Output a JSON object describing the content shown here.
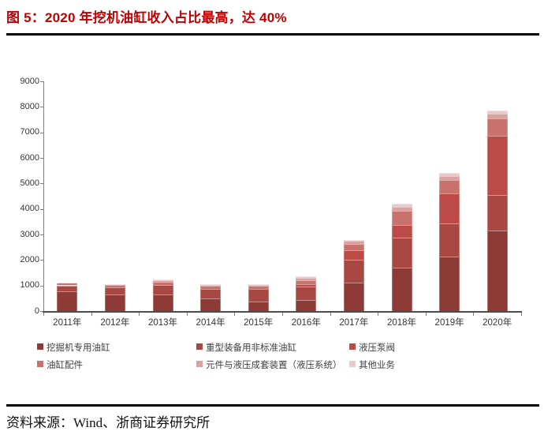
{
  "page": {
    "title": "图 5：2020 年挖机油缸收入占比最高，达 40%",
    "source": "资料来源：Wind、浙商证券研究所",
    "accent_color": "#C00000"
  },
  "chart_data": {
    "type": "bar",
    "stacked": true,
    "title": "图 5：2020 年挖机油缸收入占比最高，达 40%",
    "grid": false,
    "legend_position": "bottom",
    "categories": [
      "2011年",
      "2012年",
      "2013年",
      "2014年",
      "2015年",
      "2016年",
      "2017年",
      "2018年",
      "2019年",
      "2020年"
    ],
    "series": [
      {
        "name": "挖掘机专用油缸",
        "color": "#8E3B37",
        "values": [
          775,
          660,
          650,
          495,
          370,
          420,
          1113,
          1700,
          2134,
          3140
        ]
      },
      {
        "name": "重型装备用非标准油缸",
        "color": "#A84843",
        "values": [
          230,
          260,
          380,
          370,
          500,
          540,
          900,
          1175,
          1300,
          1420
        ]
      },
      {
        "name": "液压泵阀",
        "color": "#BC4B47",
        "values": [
          0,
          0,
          0,
          0,
          0,
          90,
          380,
          500,
          1175,
          2300
        ]
      },
      {
        "name": "油缸配件",
        "color": "#C9716C",
        "values": [
          100,
          100,
          120,
          120,
          120,
          150,
          250,
          550,
          525,
          700
        ]
      },
      {
        "name": "元件与液压成套装置（液压系统）",
        "color": "#D9A1A0",
        "values": [
          0,
          0,
          60,
          50,
          40,
          90,
          110,
          160,
          160,
          180
        ]
      },
      {
        "name": "其他业务",
        "color": "#E8CACB",
        "values": [
          12,
          21,
          30,
          29,
          21,
          84,
          42,
          126,
          120,
          115
        ]
      }
    ],
    "totals": [
      1117,
      1041,
      1240,
      1064,
      1051,
      1374,
      2795,
      4211,
      5414,
      7855
    ],
    "y_axis": {
      "min": 0,
      "max": 9000,
      "step": 1000,
      "tick_labels": [
        "0",
        "1000",
        "2000",
        "3000",
        "4000",
        "5000",
        "6000",
        "7000",
        "8000",
        "9000"
      ]
    }
  }
}
